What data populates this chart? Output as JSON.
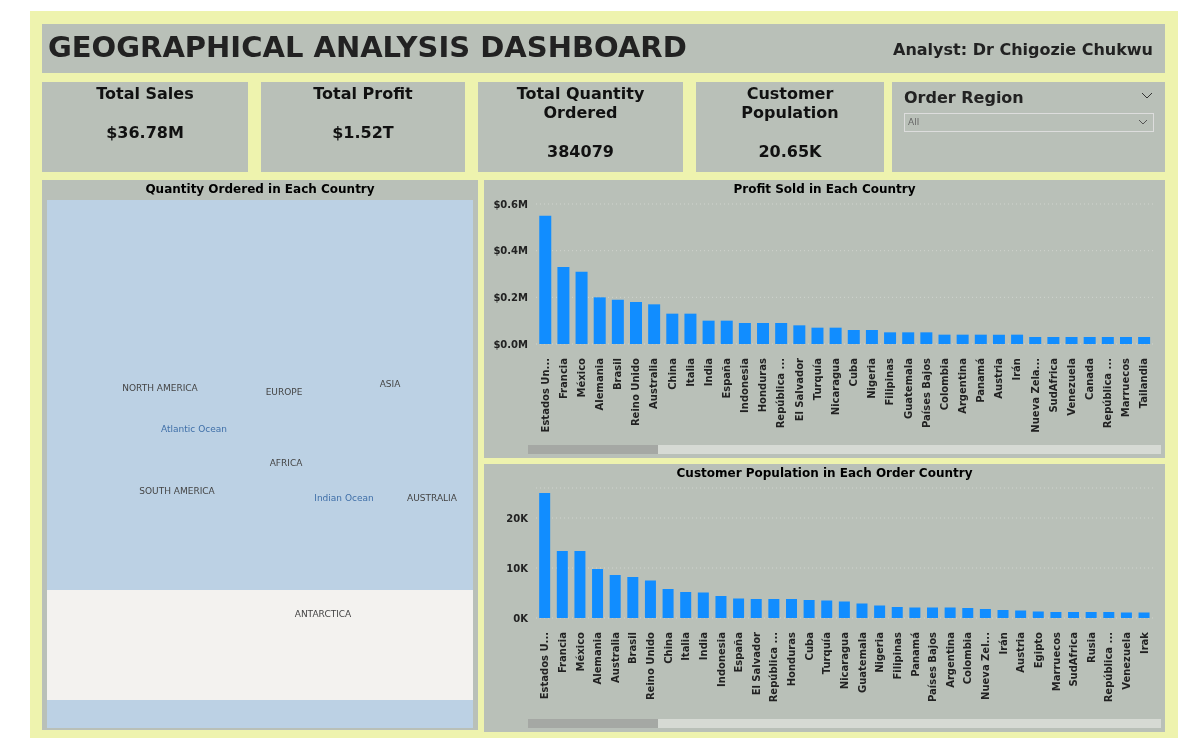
{
  "chart_data": [
    {
      "type": "other",
      "title": "GEOGRAPHICAL ANALYSIS DASHBOARD",
      "annotations": [
        "Analyst: Dr Chigozie Chukwu"
      ]
    },
    {
      "type": "other",
      "title": "Total Sales",
      "annotations": [
        "$36.78M"
      ]
    },
    {
      "type": "other",
      "title": "Total Profit",
      "annotations": [
        "$1.52T"
      ]
    },
    {
      "type": "other",
      "title": "Total Quantity Ordered",
      "annotations": [
        "384079"
      ]
    },
    {
      "type": "other",
      "title": "Customer Population",
      "annotations": [
        "20.65K"
      ]
    },
    {
      "type": "other",
      "title": "Order Region",
      "annotations": [
        "All"
      ]
    },
    {
      "type": "other",
      "title": "Quantity Ordered in Each Country",
      "annotations": [
        "NORTH AMERICA",
        "EUROPE",
        "ASIA",
        "Atlantic Ocean",
        "AFRICA",
        "SOUTH AMERICA",
        "Indian Ocean",
        "AUSTRALIA",
        "ANTARCTICA"
      ]
    },
    {
      "type": "bar",
      "title": "Profit Sold in Each Country",
      "color": "#118dff",
      "grid": "y",
      "ylim": [
        0,
        0.6
      ],
      "yticks": [
        {
          "value": 0,
          "label": "$0.0M"
        },
        {
          "value": 0.2,
          "label": "$0.2M"
        },
        {
          "value": 0.4,
          "label": "$0.4M"
        },
        {
          "value": 0.6,
          "label": "$0.6M"
        }
      ],
      "categories": [
        "Estados Un...",
        "Francia",
        "México",
        "Alemania",
        "Brasil",
        "Reino Unido",
        "Australia",
        "China",
        "Italia",
        "India",
        "España",
        "Indonesia",
        "Honduras",
        "República ...",
        "El Salvador",
        "Turquía",
        "Nicaragua",
        "Cuba",
        "Nigeria",
        "Filipinas",
        "Guatemala",
        "Países Bajos",
        "Colombia",
        "Argentina",
        "Panamá",
        "Austria",
        "Irán",
        "Nueva Zela...",
        "SudAfrica",
        "Venezuela",
        "Canada",
        "República ...",
        "Marruecos",
        "Tailandia"
      ],
      "values": [
        0.55,
        0.33,
        0.31,
        0.2,
        0.19,
        0.18,
        0.17,
        0.13,
        0.13,
        0.1,
        0.1,
        0.09,
        0.09,
        0.09,
        0.08,
        0.07,
        0.07,
        0.06,
        0.06,
        0.05,
        0.05,
        0.05,
        0.04,
        0.04,
        0.04,
        0.04,
        0.04,
        0.03,
        0.03,
        0.03,
        0.03,
        0.03,
        0.03,
        0.03
      ]
    },
    {
      "type": "bar",
      "title": "Customer Population in Each Order Country",
      "color": "#118dff",
      "grid": "y",
      "ylim": [
        0,
        26
      ],
      "yticks": [
        {
          "value": 0,
          "label": "0K"
        },
        {
          "value": 10,
          "label": "10K"
        },
        {
          "value": 20,
          "label": "20K"
        }
      ],
      "categories": [
        "Estados U...",
        "Francia",
        "México",
        "Alemania",
        "Australia",
        "Brasil",
        "Reino Unido",
        "China",
        "Italia",
        "India",
        "Indonesia",
        "España",
        "El Salvador",
        "República ...",
        "Honduras",
        "Cuba",
        "Turquía",
        "Nicaragua",
        "Guatemala",
        "Nigeria",
        "Filipinas",
        "Panamá",
        "Países Bajos",
        "Argentina",
        "Colombia",
        "Nueva Zel...",
        "Irán",
        "Austria",
        "Egipto",
        "Marruecos",
        "SudAfrica",
        "Rusia",
        "República ...",
        "Venezuela",
        "Irak"
      ],
      "values": [
        25,
        13.4,
        13.4,
        9.8,
        8.6,
        8.2,
        7.5,
        5.8,
        5.2,
        5.1,
        4.4,
        3.9,
        3.8,
        3.8,
        3.8,
        3.6,
        3.5,
        3.3,
        2.9,
        2.5,
        2.2,
        2.1,
        2.1,
        2.1,
        2.0,
        1.8,
        1.6,
        1.5,
        1.3,
        1.2,
        1.2,
        1.2,
        1.2,
        1.1,
        1.1
      ]
    }
  ]
}
